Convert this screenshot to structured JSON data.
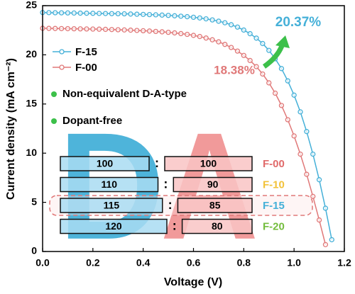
{
  "chart_data": {
    "type": "line",
    "xlabel": "Voltage (V)",
    "ylabel": "Current density (mA cm⁻²)",
    "xlim": [
      0,
      1.2
    ],
    "ylim": [
      0,
      25
    ],
    "xticks": [
      {
        "value": 0,
        "label": "0.0"
      },
      0.2,
      0.4,
      0.6,
      0.8,
      {
        "value": 1,
        "label": "1.0"
      },
      1.2
    ],
    "yticks": [
      0,
      5,
      10,
      15,
      20,
      25
    ],
    "legend": "upper left",
    "x": [
      0,
      0.025,
      0.05,
      0.075,
      0.1,
      0.125,
      0.15,
      0.175,
      0.2,
      0.225,
      0.25,
      0.275,
      0.3,
      0.325,
      0.35,
      0.375,
      0.4,
      0.425,
      0.45,
      0.475,
      0.5,
      0.525,
      0.55,
      0.575,
      0.6,
      0.625,
      0.65,
      0.675,
      0.7,
      0.725,
      0.75,
      0.775,
      0.8,
      0.825,
      0.85,
      0.875,
      0.9,
      0.925,
      0.95,
      0.975,
      1.0,
      1.025,
      1.05,
      1.075,
      1.1,
      1.125,
      1.15
    ],
    "series": [
      {
        "name": "F-15",
        "color": "#45b0d8",
        "values": [
          24.3,
          24.29,
          24.28,
          24.27,
          24.26,
          24.25,
          24.24,
          24.23,
          24.22,
          24.21,
          24.2,
          24.19,
          24.18,
          24.17,
          24.15,
          24.13,
          24.11,
          24.09,
          24.07,
          24.04,
          24.01,
          23.97,
          23.93,
          23.88,
          23.82,
          23.75,
          23.66,
          23.55,
          23.42,
          23.26,
          23.06,
          22.82,
          22.52,
          22.15,
          21.7,
          21.15,
          20.45,
          19.6,
          18.6,
          17.35,
          15.9,
          14.2,
          12.2,
          9.9,
          7.3,
          4.4,
          1.2
        ]
      },
      {
        "name": "F-00",
        "color": "#e07878",
        "values": [
          22.7,
          22.69,
          22.68,
          22.67,
          22.66,
          22.65,
          22.64,
          22.63,
          22.62,
          22.61,
          22.59,
          22.57,
          22.55,
          22.53,
          22.51,
          22.48,
          22.45,
          22.42,
          22.38,
          22.34,
          22.29,
          22.23,
          22.16,
          22.08,
          21.98,
          21.86,
          21.71,
          21.53,
          21.32,
          21.06,
          20.75,
          20.38,
          19.94,
          19.42,
          18.8,
          18.05,
          17.15,
          16.1,
          14.85,
          13.4,
          11.75,
          9.9,
          7.85,
          5.6,
          3.2,
          0.7,
          null
        ]
      }
    ],
    "annotations": {
      "pce_f15": "20.37%",
      "pce_f00": "18.38%",
      "bullet1": "Non-equivalent D-A-type",
      "bullet2": "Dopant-free"
    },
    "inset": {
      "donor_letter": "D",
      "acceptor_letter": "A",
      "separator": ":",
      "rows": [
        {
          "d": 100,
          "a": 100,
          "label": "F-00",
          "color": "#e06a6a"
        },
        {
          "d": 110,
          "a": 90,
          "label": "F-10",
          "color": "#f2c23a"
        },
        {
          "d": 115,
          "a": 85,
          "label": "F-15",
          "color": "#45b0d8"
        },
        {
          "d": 120,
          "a": 80,
          "label": "F-20",
          "color": "#74bd3e"
        }
      ]
    }
  }
}
